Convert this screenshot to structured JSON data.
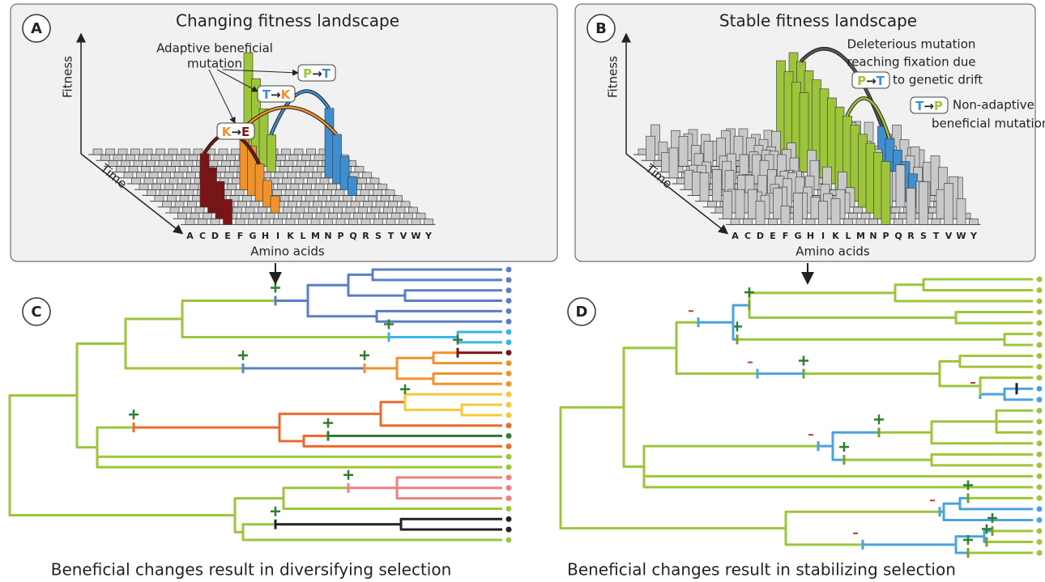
{
  "panels": [
    {
      "label": "A",
      "title": "Changing fitness landscape",
      "y_axis": "Fitness",
      "time_axis": "Time",
      "x_axis": "Amino acids",
      "amino_acids": [
        "A",
        "C",
        "D",
        "E",
        "F",
        "G",
        "H",
        "I",
        "K",
        "L",
        "M",
        "N",
        "P",
        "Q",
        "R",
        "S",
        "T",
        "V",
        "W",
        "Y"
      ],
      "annotation": [
        "Adaptive beneficial",
        "mutation"
      ],
      "mutations": [
        {
          "from": "P",
          "arrow": "→",
          "to": "T"
        },
        {
          "from": "T",
          "arrow": "→",
          "to": "K"
        },
        {
          "from": "K",
          "arrow": "→",
          "to": "E"
        }
      ]
    },
    {
      "label": "B",
      "title": "Stable fitness landscape",
      "y_axis": "Fitness",
      "time_axis": "Time",
      "x_axis": "Amino acids",
      "amino_acids": [
        "A",
        "C",
        "D",
        "E",
        "F",
        "G",
        "H",
        "I",
        "K",
        "L",
        "M",
        "N",
        "P",
        "Q",
        "R",
        "S",
        "T",
        "V",
        "W",
        "Y"
      ],
      "annotation": [
        "Deleterious mutation",
        "reaching fixation due",
        "to genetic drift"
      ],
      "annotation2": [
        "Non-adaptive",
        "beneficial mutation"
      ],
      "mutations": [
        {
          "from": "P",
          "arrow": "→",
          "to": "T"
        },
        {
          "from": "T",
          "arrow": "→",
          "to": "P"
        }
      ]
    }
  ],
  "trees": [
    {
      "label": "C",
      "caption": "Beneficial changes result in diversifying selection"
    },
    {
      "label": "D",
      "caption": "Beneficial changes result in stabilizing selection"
    }
  ]
}
